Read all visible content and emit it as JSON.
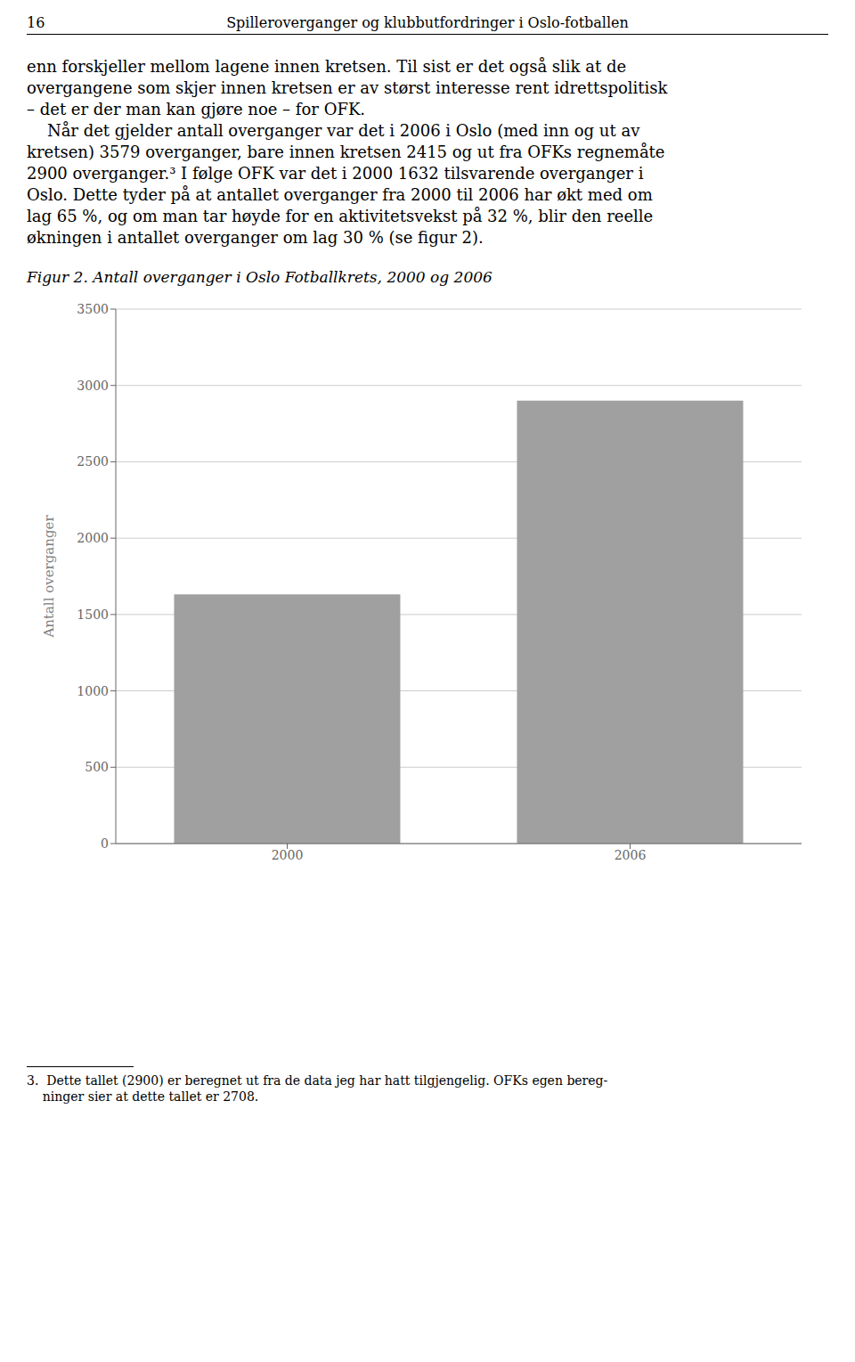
{
  "chart_data": {
    "type": "bar",
    "title": "Figur 2. Antall overganger i Oslo Fotballkrets, 2000 og 2006",
    "annotations": [
      [
        "16",
        "Spilleroverganger og klubbutfordringer i Oslo-fotballen"
      ],
      [
        "enn forskjeller mellom lagene innen kretsen. Til sist er det også slik at de",
        "overgangene som skjer innen kretsen er av størst interesse rent idrettspolitisk",
        "– det er der man kan gjøre noe – for OFK.",
        "    Når det gjelder antall overganger var det i 2006 i Oslo (med inn og ut av",
        "kretsen) 3579 overganger, bare innen kretsen 2415 og ut fra OFKs regnemåte",
        "2900 overganger.³ I følge OFK var det i 2000 1632 tilsvarende overganger i",
        "Oslo. Dette tyder på at antallet overganger fra 2000 til 2006 har økt med om",
        "lag 65 %, og om man tar høyde for en aktivitetsvekst på 32 %, blir den reelle",
        "økningen i antallet overganger om lag 30 % (se figur 2)."
      ],
      [
        "3.  Dette tallet (2900) er beregnet ut fra de data jeg har hatt tilgjengelig. OFKs egen bereg-",
        "    ninger sier at dette tallet er 2708."
      ]
    ],
    "categories": [
      "2000",
      "2006"
    ],
    "values": [
      1632,
      2900
    ],
    "color": "#a0a0a0",
    "ylabel": "Antall overganger",
    "ylim": [
      0,
      3500
    ],
    "yticks": [
      0,
      500,
      1000,
      1500,
      2000,
      2500,
      3000,
      3500
    ],
    "grid": true
  }
}
